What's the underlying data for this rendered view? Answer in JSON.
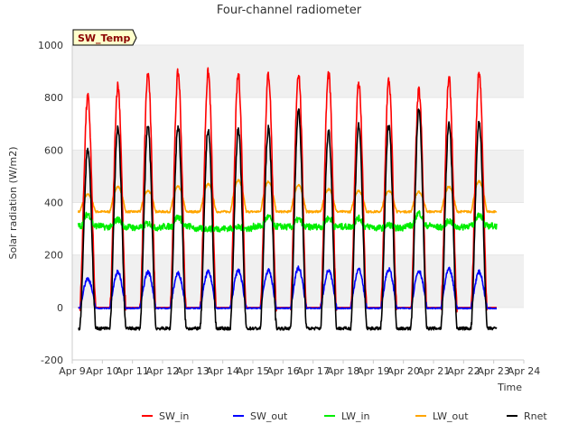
{
  "chart_data": {
    "type": "line",
    "title": "Four-channel radiometer",
    "xlabel": "Time",
    "ylabel": "Solar radiation (W/m2)",
    "ylim": [
      -200,
      1000
    ],
    "yticks": [
      -200,
      0,
      200,
      400,
      600,
      800,
      1000
    ],
    "xlim": [
      "2016-04-09",
      "2016-04-24"
    ],
    "xtick_labels": [
      "Apr 9",
      "Apr 10",
      "Apr 11",
      "Apr 12",
      "Apr 13",
      "Apr 14",
      "Apr 15",
      "Apr 16",
      "Apr 17",
      "Apr 18",
      "Apr 19",
      "Apr 20",
      "Apr 21",
      "Apr 22",
      "Apr 23",
      "Apr 24"
    ],
    "annotation": "SW_Temp",
    "legend_position": "bottom",
    "grid": true,
    "series": [
      {
        "name": "SW_in",
        "color": "#ff0000",
        "daily_peak": [
          800,
          845,
          890,
          895,
          895,
          885,
          888,
          893,
          890,
          855,
          865,
          825,
          870,
          895
        ]
      },
      {
        "name": "SW_out",
        "color": "#0000ff",
        "daily_peak": [
          110,
          135,
          135,
          130,
          135,
          140,
          140,
          150,
          140,
          145,
          145,
          140,
          145,
          135
        ]
      },
      {
        "name": "LW_in",
        "color": "#00ee00",
        "daily_peak": [
          355,
          335,
          320,
          345,
          300,
          305,
          345,
          335,
          340,
          340,
          315,
          360,
          330,
          355
        ]
      },
      {
        "name": "LW_out",
        "color": "#ffa500",
        "daily_peak": [
          430,
          460,
          445,
          460,
          470,
          485,
          480,
          465,
          450,
          445,
          445,
          440,
          460,
          480
        ]
      },
      {
        "name": "Rnet",
        "color": "#000000",
        "daily_peak": [
          600,
          680,
          690,
          690,
          680,
          675,
          680,
          750,
          670,
          695,
          700,
          750,
          700,
          705
        ]
      }
    ]
  }
}
